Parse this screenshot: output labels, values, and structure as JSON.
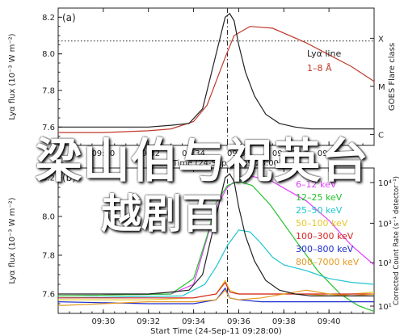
{
  "chart_data": [
    {
      "type": "line",
      "panel_tag": "(a)",
      "ylabel_left": "Lyα flux (10⁻³ W m⁻²)",
      "ylabel_right": "GOES Flare class",
      "xlabel": "Start Time (24-Sep-11 09:28:00)",
      "xlim_minutes_after_0900": [
        28,
        42
      ],
      "x_ticks": [
        "09:30",
        "09:32",
        "09:34",
        "09:36",
        "09:38",
        "09:40"
      ],
      "y_ticks": [
        "7.6",
        "7.8",
        "8.0",
        "8.2"
      ],
      "ylim": [
        7.5,
        8.25
      ],
      "right_axis_ticks": [
        "X",
        "M",
        "C"
      ],
      "grid": false,
      "legend_position": "upper-right",
      "dashed_vertical_line_time": "09:35.5",
      "dotted_horizontal_line_y": 8.07,
      "series": [
        {
          "name": "Lyα line",
          "color": "#222222",
          "x": [
            28,
            30,
            32,
            33,
            33.8,
            34.4,
            34.9,
            35.2,
            35.4,
            35.6,
            35.8,
            36.0,
            36.3,
            36.7,
            37.2,
            37.8,
            38.5,
            39.2,
            40,
            41,
            42
          ],
          "y": [
            7.6,
            7.6,
            7.6,
            7.61,
            7.62,
            7.7,
            7.95,
            8.1,
            8.2,
            8.22,
            8.18,
            8.05,
            7.9,
            7.77,
            7.67,
            7.62,
            7.6,
            7.59,
            7.59,
            7.59,
            7.59
          ]
        },
        {
          "name": "1–8 Å",
          "color": "#c0392b",
          "x": [
            28,
            30,
            32,
            33,
            34,
            34.6,
            35,
            35.4,
            35.8,
            36.5,
            37.5,
            39,
            41,
            42
          ],
          "y": [
            7.57,
            7.57,
            7.58,
            7.59,
            7.63,
            7.72,
            7.85,
            7.98,
            8.1,
            8.15,
            8.14,
            8.06,
            7.93,
            7.85
          ]
        }
      ]
    },
    {
      "type": "line",
      "panel_tag": "(b)",
      "ylabel_left": "Lyα flux (10⁻³ W m⁻²)",
      "ylabel_right": "Corrected Count Rate (s⁻¹ detector⁻¹)",
      "xlabel": "Start Time (24-Sep-11 09:28:00)",
      "xlim_minutes_after_0900": [
        28,
        42
      ],
      "x_ticks": [
        "09:30",
        "09:32",
        "09:34",
        "09:36",
        "09:38",
        "09:40"
      ],
      "y_ticks": [
        "7.6",
        "7.8",
        "8.0",
        "8.2"
      ],
      "ylim": [
        7.5,
        8.25
      ],
      "right_axis_ticks": [
        "10¹",
        "10²",
        "10³",
        "10⁴"
      ],
      "grid": false,
      "legend_position": "upper-right",
      "dashed_vertical_line_time": "09:35.5",
      "series": [
        {
          "name": "6–12 keV",
          "color": "#e040fb",
          "x": [
            28,
            33,
            34,
            34.5,
            35,
            35.5,
            36,
            36.5,
            37.5,
            39,
            40,
            41,
            42
          ],
          "y": [
            7.59,
            7.6,
            7.65,
            7.85,
            8.05,
            8.15,
            8.2,
            8.21,
            8.18,
            8.08,
            7.98,
            7.85,
            7.75
          ]
        },
        {
          "name": "12–25 keV",
          "color": "#22c32a",
          "x": [
            28,
            33,
            34,
            34.6,
            35,
            35.5,
            36,
            36.6,
            37.4,
            38.5,
            39.5,
            40.5,
            41.3,
            42
          ],
          "y": [
            7.59,
            7.6,
            7.68,
            7.9,
            8.07,
            8.16,
            8.18,
            8.16,
            8.06,
            7.88,
            7.72,
            7.6,
            7.54,
            7.51
          ]
        },
        {
          "name": "25–50 keV",
          "color": "#21c5cf",
          "x": [
            28,
            33.5,
            34.5,
            35,
            35.5,
            36,
            36.5,
            37,
            37.5,
            38,
            39,
            40,
            41,
            42
          ],
          "y": [
            7.58,
            7.59,
            7.65,
            7.74,
            7.85,
            7.93,
            7.92,
            7.86,
            7.79,
            7.75,
            7.72,
            7.68,
            7.66,
            7.65
          ]
        },
        {
          "name": "50–100 keV",
          "color": "#e6c62a",
          "x": [
            28,
            32,
            34,
            35,
            35.4,
            35.6,
            36,
            37,
            38,
            39,
            40,
            41,
            42
          ],
          "y": [
            7.57,
            7.57,
            7.58,
            7.6,
            7.67,
            7.62,
            7.6,
            7.6,
            7.6,
            7.6,
            7.59,
            7.6,
            7.61
          ]
        },
        {
          "name": "100–300 keV",
          "color": "#d62424",
          "x": [
            28,
            32,
            34,
            35,
            35.4,
            35.6,
            36,
            37,
            38,
            39,
            40,
            41,
            42
          ],
          "y": [
            7.58,
            7.58,
            7.58,
            7.6,
            7.66,
            7.61,
            7.6,
            7.6,
            7.6,
            7.6,
            7.6,
            7.6,
            7.6
          ]
        },
        {
          "name": "300–800 keV",
          "color": "#1f2fd0",
          "x": [
            28,
            32,
            34,
            35,
            35.4,
            35.6,
            36,
            37,
            38,
            39,
            40,
            41,
            42
          ],
          "y": [
            7.56,
            7.55,
            7.55,
            7.57,
            7.63,
            7.58,
            7.57,
            7.56,
            7.56,
            7.56,
            7.56,
            7.56,
            7.56
          ]
        },
        {
          "name": "800–7000 keV",
          "color": "#e59a22",
          "x": [
            28,
            30,
            32,
            34,
            35,
            35.4,
            35.6,
            36,
            37,
            38,
            39,
            40,
            41,
            42
          ],
          "y": [
            7.54,
            7.55,
            7.56,
            7.56,
            7.57,
            7.62,
            7.58,
            7.57,
            7.58,
            7.6,
            7.62,
            7.6,
            7.59,
            7.6
          ]
        },
        {
          "name": "Lyα",
          "color": "#222222",
          "x": [
            28,
            30,
            32,
            33,
            33.8,
            34.4,
            34.9,
            35.2,
            35.4,
            35.6,
            35.8,
            36.0,
            36.3,
            36.7,
            37.2,
            37.8,
            38.5,
            39.2,
            40,
            41,
            42
          ],
          "y": [
            7.6,
            7.6,
            7.6,
            7.61,
            7.62,
            7.7,
            7.95,
            8.1,
            8.2,
            8.22,
            8.18,
            8.05,
            7.9,
            7.77,
            7.67,
            7.62,
            7.6,
            7.59,
            7.59,
            7.59,
            7.59
          ]
        }
      ],
      "legend_entries": [
        "6–12 keV",
        "12–25 keV",
        "25–50 keV",
        "50–100 keV",
        "100–300 keV",
        "300–800 keV",
        "800–7000 keV"
      ]
    }
  ],
  "overlay_text": {
    "line1": "梁山伯与祝英台",
    "line2": "越剧百"
  },
  "colors": {
    "overlay_text": "#ffffff",
    "axis": "#222222"
  }
}
